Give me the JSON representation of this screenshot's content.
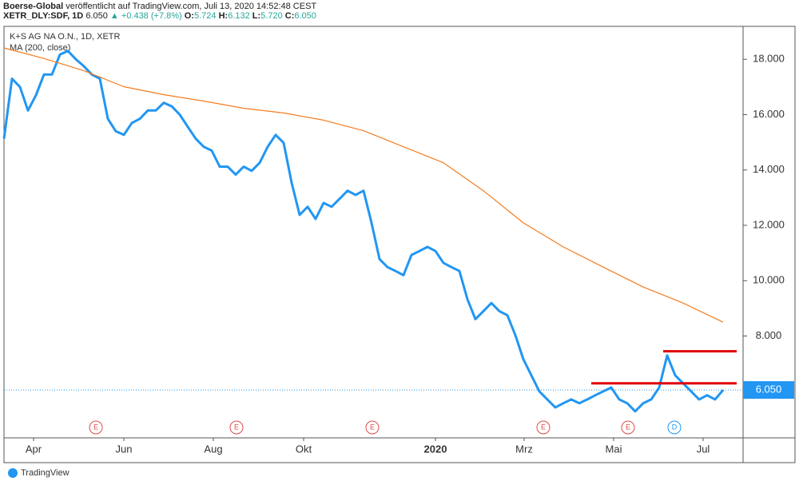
{
  "header": {
    "publisher": "Boerse-Global",
    "published": "veröffentlicht auf TradingView.com, Juli 13, 2020 14:52:48 CEST",
    "symbol": "XETR_DLY:SDF, 1D",
    "price": "6.050",
    "change": "▲ +0.438 (+7.8%)",
    "ohlc": [
      {
        "label": "O:",
        "value": "5.724"
      },
      {
        "label": "H:",
        "value": "6.132"
      },
      {
        "label": "L:",
        "value": "5.720"
      },
      {
        "label": "C:",
        "value": "6.050"
      }
    ]
  },
  "footer": "TradingView",
  "chart_data": {
    "type": "line",
    "legend": [
      "K+S AG NA O.N., 1D, XETR",
      "MA (200, close)"
    ],
    "series": [
      {
        "name": "K+S AG NA O.N., 1D, XETR",
        "color": "#2196f3",
        "values": [
          15.13,
          17.3,
          17.0,
          16.15,
          16.7,
          17.45,
          17.45,
          18.17,
          18.3,
          18.0,
          17.75,
          17.45,
          17.3,
          15.85,
          15.4,
          15.27,
          15.7,
          15.85,
          16.15,
          16.15,
          16.43,
          16.3,
          16.0,
          15.56,
          15.13,
          14.84,
          14.7,
          14.12,
          14.12,
          13.83,
          14.12,
          13.97,
          14.26,
          14.84,
          15.27,
          14.98,
          13.54,
          12.38,
          12.67,
          12.23,
          12.81,
          12.67,
          12.96,
          13.25,
          13.1,
          13.25,
          12.09,
          10.78,
          10.49,
          10.35,
          10.2,
          10.93,
          11.07,
          11.22,
          11.07,
          10.64,
          10.49,
          10.35,
          9.33,
          8.61,
          8.9,
          9.19,
          8.9,
          8.75,
          8.03,
          7.16,
          6.58,
          6.0,
          5.71,
          5.42,
          5.57,
          5.71,
          5.57,
          5.71,
          5.86,
          6.0,
          6.14,
          5.71,
          5.57,
          5.28,
          5.57,
          5.71,
          6.14,
          7.3,
          6.58,
          6.29,
          6.0,
          5.71,
          5.86,
          5.71,
          6.05
        ]
      },
      {
        "name": "MA (200, close)",
        "color": "#f57c1f",
        "values": [
          18.41,
          18.03,
          17.59,
          17.01,
          16.72,
          16.49,
          16.23,
          16.06,
          15.8,
          15.42,
          14.84,
          14.26,
          13.25,
          12.09,
          11.22,
          10.49,
          9.77,
          9.19,
          8.5
        ]
      }
    ],
    "last_value": {
      "value": 6.05,
      "label": "6.050"
    },
    "hlines": [
      {
        "value": 6.29,
        "from": 73.5,
        "to": 91.7,
        "color": "#e00000"
      },
      {
        "value": 7.45,
        "from": 82.5,
        "to": 91.7,
        "color": "#e00000"
      }
    ],
    "events": [
      {
        "label": "E",
        "at": 11.5
      },
      {
        "label": "E",
        "at": 29.1
      },
      {
        "label": "E",
        "at": 46.1
      },
      {
        "label": "E",
        "at": 67.5
      },
      {
        "label": "E",
        "at": 78.1
      },
      {
        "label": "D",
        "at": 83.9
      }
    ],
    "xlim": [
      0,
      92.5
    ],
    "xticks": [
      {
        "value": 3.7,
        "label": "Apr"
      },
      {
        "value": 15,
        "label": "Jun"
      },
      {
        "value": 26.2,
        "label": "Aug"
      },
      {
        "value": 37.5,
        "label": "Okt"
      },
      {
        "value": 54,
        "label": "2020"
      },
      {
        "value": 65.1,
        "label": "Mrz"
      },
      {
        "value": 76.3,
        "label": "Mai"
      },
      {
        "value": 87.5,
        "label": "Jul"
      }
    ],
    "ylim": [
      4.32,
      19.19
    ],
    "yticks": [
      {
        "value": 8,
        "label": "8.000"
      },
      {
        "value": 10,
        "label": "10.000"
      },
      {
        "value": 12,
        "label": "12.000"
      },
      {
        "value": 14,
        "label": "14.000"
      },
      {
        "value": 16,
        "label": "16.000"
      },
      {
        "value": 18,
        "label": "18.000"
      }
    ],
    "grid": false
  }
}
